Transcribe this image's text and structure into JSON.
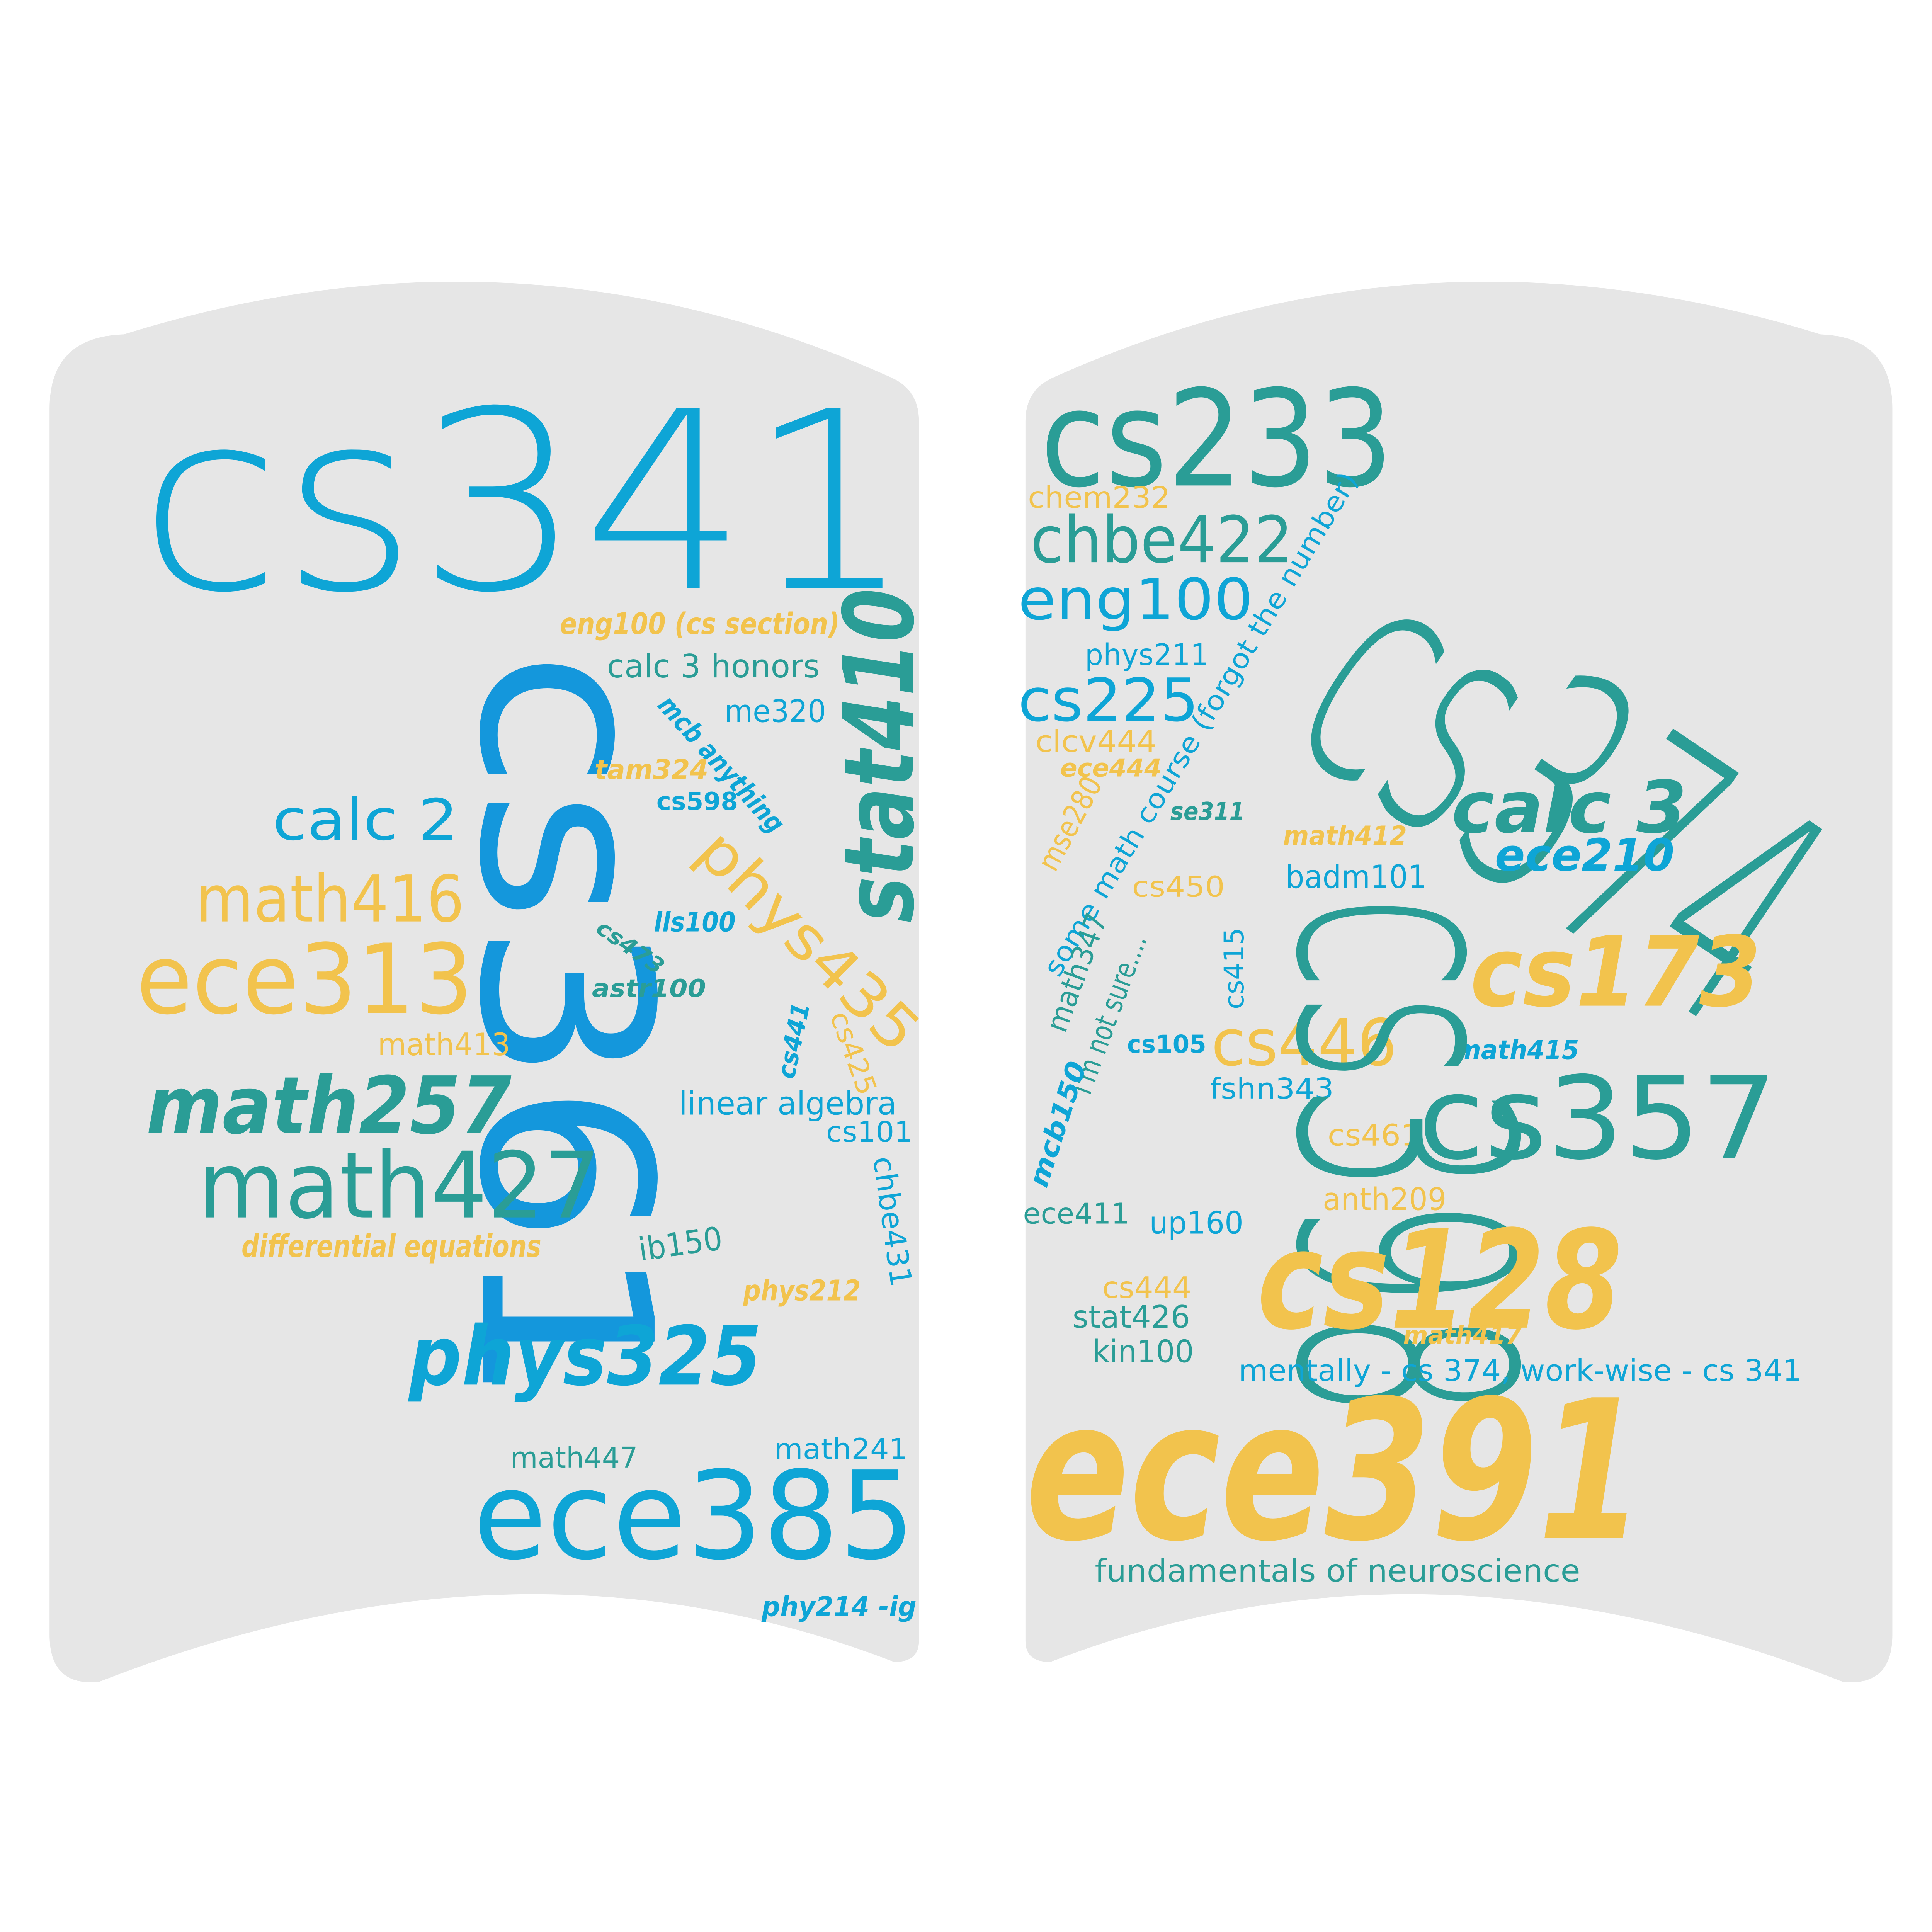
{
  "colors": {
    "background": "#ffffff",
    "page": "#e6e6e6",
    "blue": "#0ea5d6",
    "blue_dark": "#1497dc",
    "teal": "#2a9d96",
    "yellow": "#f2c34d"
  },
  "left_page": {
    "words": [
      {
        "text": "cs341",
        "color": "blue"
      },
      {
        "text": "cs361",
        "color": "blue_dark"
      },
      {
        "text": "stat410",
        "color": "teal"
      },
      {
        "text": "eng100 (cs section)",
        "color": "yellow"
      },
      {
        "text": "calc 3 honors",
        "color": "teal"
      },
      {
        "text": "me320",
        "color": "blue"
      },
      {
        "text": "mcb anything",
        "color": "blue"
      },
      {
        "text": "tam324",
        "color": "yellow"
      },
      {
        "text": "cs598",
        "color": "blue"
      },
      {
        "text": "calc 2",
        "color": "blue"
      },
      {
        "text": "phys435",
        "color": "yellow"
      },
      {
        "text": "math416",
        "color": "yellow"
      },
      {
        "text": "lls100",
        "color": "blue"
      },
      {
        "text": "cs473",
        "color": "teal"
      },
      {
        "text": "astr100",
        "color": "teal"
      },
      {
        "text": "ece313",
        "color": "yellow"
      },
      {
        "text": "math413",
        "color": "yellow"
      },
      {
        "text": "cs441",
        "color": "blue"
      },
      {
        "text": "cs425",
        "color": "yellow"
      },
      {
        "text": "math257",
        "color": "teal"
      },
      {
        "text": "linear algebra",
        "color": "blue"
      },
      {
        "text": "cs101",
        "color": "blue"
      },
      {
        "text": "math427",
        "color": "teal"
      },
      {
        "text": "chbe431",
        "color": "blue"
      },
      {
        "text": "differential equations",
        "color": "yellow"
      },
      {
        "text": "ib150",
        "color": "teal"
      },
      {
        "text": "phys212",
        "color": "yellow"
      },
      {
        "text": "phys325",
        "color": "blue"
      },
      {
        "text": "math447",
        "color": "teal"
      },
      {
        "text": "math241",
        "color": "blue"
      },
      {
        "text": "ece385",
        "color": "blue"
      },
      {
        "text": "phy214 -ig",
        "color": "blue"
      }
    ]
  },
  "right_page": {
    "words": [
      {
        "text": "cs233",
        "color": "teal"
      },
      {
        "text": "chem232",
        "color": "yellow"
      },
      {
        "text": "chbe422",
        "color": "teal"
      },
      {
        "text": "some math course (forgot the number)",
        "color": "blue"
      },
      {
        "text": "cs374",
        "color": "teal"
      },
      {
        "text": "eng100",
        "color": "blue"
      },
      {
        "text": "phys211",
        "color": "blue"
      },
      {
        "text": "cs225",
        "color": "blue"
      },
      {
        "text": "clcv444",
        "color": "yellow"
      },
      {
        "text": "ece444",
        "color": "yellow"
      },
      {
        "text": "mse280",
        "color": "yellow"
      },
      {
        "text": "se311",
        "color": "teal"
      },
      {
        "text": "calc 3",
        "color": "teal"
      },
      {
        "text": "math412",
        "color": "yellow"
      },
      {
        "text": "ece210",
        "color": "blue"
      },
      {
        "text": "badm101",
        "color": "blue"
      },
      {
        "text": "cs450",
        "color": "yellow"
      },
      {
        "text": "math347",
        "color": "teal"
      },
      {
        "text": "i'm not sure....",
        "color": "teal"
      },
      {
        "text": "cs415",
        "color": "blue"
      },
      {
        "text": "cs173",
        "color": "yellow"
      },
      {
        "text": "cs105",
        "color": "blue"
      },
      {
        "text": "cs446",
        "color": "yellow"
      },
      {
        "text": "math415",
        "color": "blue"
      },
      {
        "text": "fshn343",
        "color": "blue"
      },
      {
        "text": "mcb150",
        "color": "blue"
      },
      {
        "text": "cs357",
        "color": "teal"
      },
      {
        "text": "cs461",
        "color": "yellow"
      },
      {
        "text": "cs398",
        "color": "teal"
      },
      {
        "text": "anth209",
        "color": "yellow"
      },
      {
        "text": "ece411",
        "color": "teal"
      },
      {
        "text": "up160",
        "color": "blue"
      },
      {
        "text": "cs128",
        "color": "yellow"
      },
      {
        "text": "cs444",
        "color": "yellow"
      },
      {
        "text": "stat426",
        "color": "teal"
      },
      {
        "text": "math417",
        "color": "yellow"
      },
      {
        "text": "kin100",
        "color": "teal"
      },
      {
        "text": "mentally - cs 374, work-wise - cs 341",
        "color": "blue"
      },
      {
        "text": "ece391",
        "color": "yellow"
      },
      {
        "text": "fundamentals of neuroscience",
        "color": "teal"
      }
    ]
  }
}
